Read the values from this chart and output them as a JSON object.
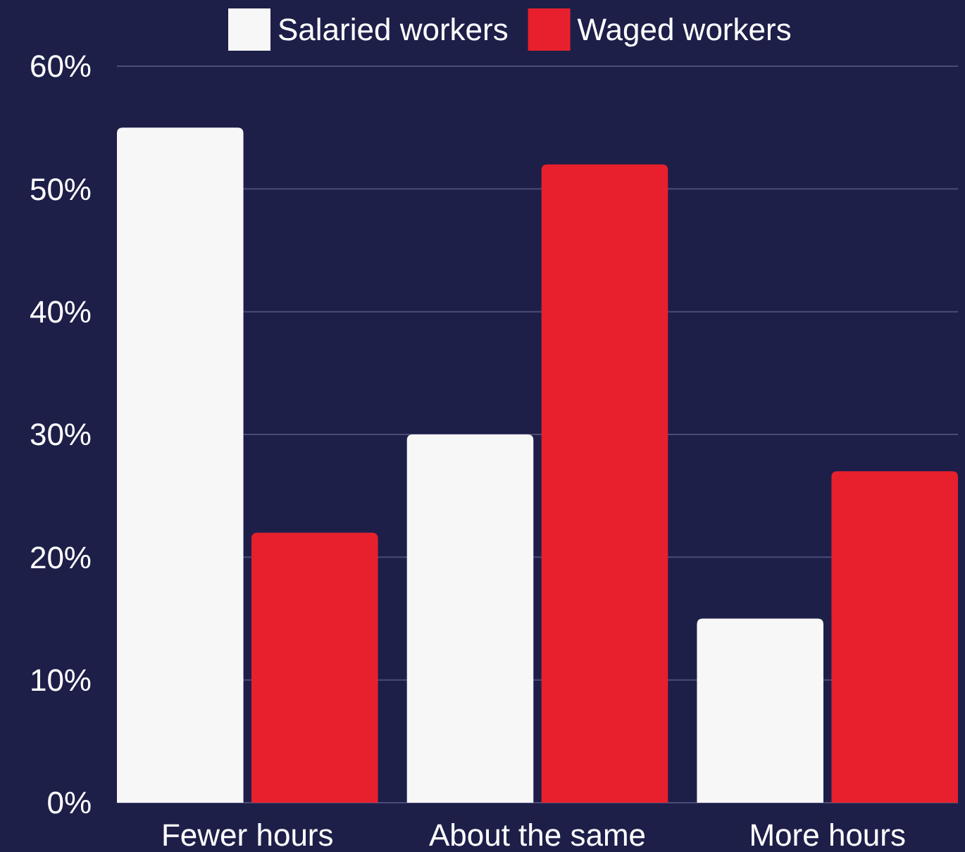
{
  "chart_data": {
    "type": "bar",
    "categories": [
      "Fewer hours",
      "About the same",
      "More hours"
    ],
    "series": [
      {
        "name": "Salaried workers",
        "color": "#f7f7f7",
        "values": [
          55,
          30,
          15
        ]
      },
      {
        "name": "Waged workers",
        "color": "#e8202d",
        "values": [
          22,
          52,
          27
        ]
      }
    ],
    "ylim": [
      0,
      60
    ],
    "yticks": [
      {
        "value": 0,
        "label": "0%"
      },
      {
        "value": 10,
        "label": "10%"
      },
      {
        "value": 20,
        "label": "20%"
      },
      {
        "value": 30,
        "label": "30%"
      },
      {
        "value": 40,
        "label": "40%"
      },
      {
        "value": 50,
        "label": "50%"
      },
      {
        "value": 60,
        "label": "60%"
      }
    ],
    "grid": "y",
    "legend": "top"
  }
}
